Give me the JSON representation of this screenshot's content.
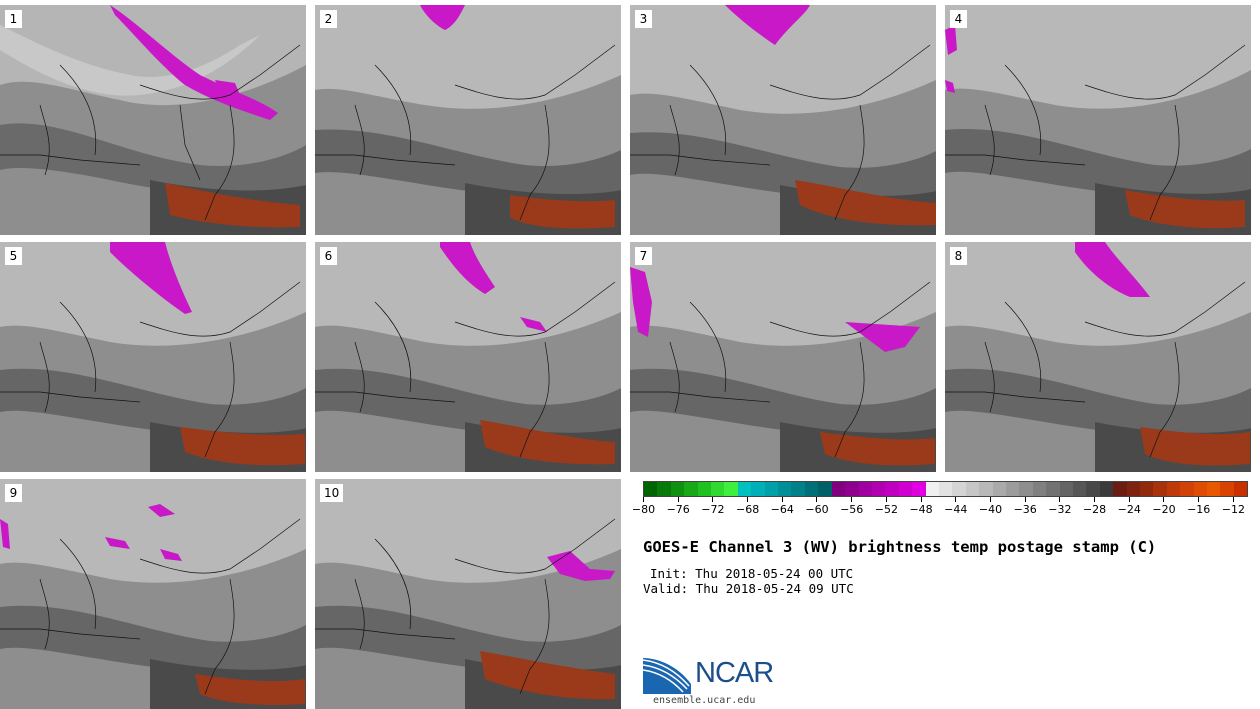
{
  "panels": [
    {
      "label": "1"
    },
    {
      "label": "2"
    },
    {
      "label": "3"
    },
    {
      "label": "4"
    },
    {
      "label": "5"
    },
    {
      "label": "6"
    },
    {
      "label": "7"
    },
    {
      "label": "8"
    },
    {
      "label": "9"
    },
    {
      "label": "10"
    }
  ],
  "colorbar": {
    "tick_labels": [
      "−80",
      "−76",
      "−72",
      "−68",
      "−64",
      "−60",
      "−56",
      "−52",
      "−48",
      "−44",
      "−40",
      "−36",
      "−32",
      "−28",
      "−24",
      "−20",
      "−16",
      "−12"
    ],
    "colors": [
      "#006400",
      "#097a09",
      "#109010",
      "#18a818",
      "#20c020",
      "#30d830",
      "#40ee40",
      "#00c0c0",
      "#00b0b8",
      "#00a0a8",
      "#008f98",
      "#008088",
      "#007078",
      "#006068",
      "#800080",
      "#8f008f",
      "#9f009f",
      "#b000b0",
      "#c000c0",
      "#d000d0",
      "#e000e0",
      "#f0f0f0",
      "#e2e2e2",
      "#d4d4d4",
      "#c6c6c6",
      "#b8b8b8",
      "#aaaaaa",
      "#9c9c9c",
      "#8e8e8e",
      "#808080",
      "#727272",
      "#646464",
      "#565656",
      "#484848",
      "#3a3a3a",
      "#6b1d12",
      "#7d2310",
      "#8f2a0e",
      "#a8320c",
      "#bf3a0a",
      "#d04208",
      "#e04c05",
      "#e85800",
      "#d84400",
      "#c83000"
    ]
  },
  "title": "GOES-E Channel 3 (WV) brightness temp postage stamp (C)",
  "init": "Init: Thu 2018-05-24 00 UTC",
  "valid": "Valid: Thu 2018-05-24 09 UTC",
  "logo": {
    "name": "NCAR",
    "url": "ensemble.ucar.edu"
  }
}
